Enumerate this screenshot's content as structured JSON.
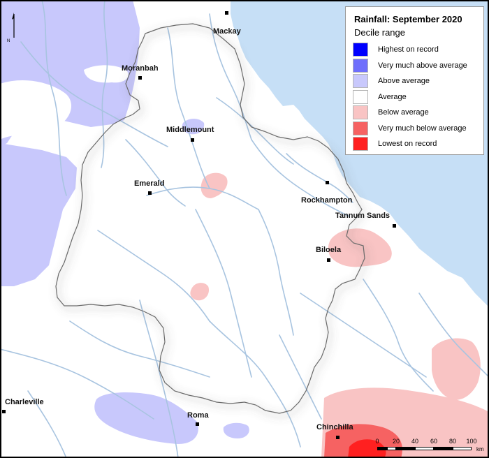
{
  "legend": {
    "title": "Rainfall: September 2020",
    "subtitle": "Decile range",
    "items": [
      {
        "label": "Highest on record",
        "color": "#0000ff"
      },
      {
        "label": "Very much above average",
        "color": "#6e6efc"
      },
      {
        "label": "Above average",
        "color": "#c8c8fc"
      },
      {
        "label": "Average",
        "color": "#ffffff"
      },
      {
        "label": "Below average",
        "color": "#f9c4c4"
      },
      {
        "label": "Very much below average",
        "color": "#f66262"
      },
      {
        "label": "Lowest on record",
        "color": "#ff2020"
      }
    ]
  },
  "towns": {
    "mackay": "Mackay",
    "moranbah": "Moranbah",
    "middlemount": "Middlemount",
    "emerald": "Emerald",
    "rockhampton": "Rockhampton",
    "tannum_sands": "Tannum Sands",
    "biloela": "Biloela",
    "charleville": "Charleville",
    "roma": "Roma",
    "chinchilla": "Chinchilla"
  },
  "scale_bar": {
    "ticks": [
      "0",
      "20",
      "40",
      "60",
      "80",
      "100"
    ],
    "unit": "km"
  },
  "north_arrow": {
    "letter": "N"
  },
  "colors": {
    "sea": "#c6dff6",
    "river": "#a8c4e0",
    "basin_shadow": "#7a7a7a"
  }
}
